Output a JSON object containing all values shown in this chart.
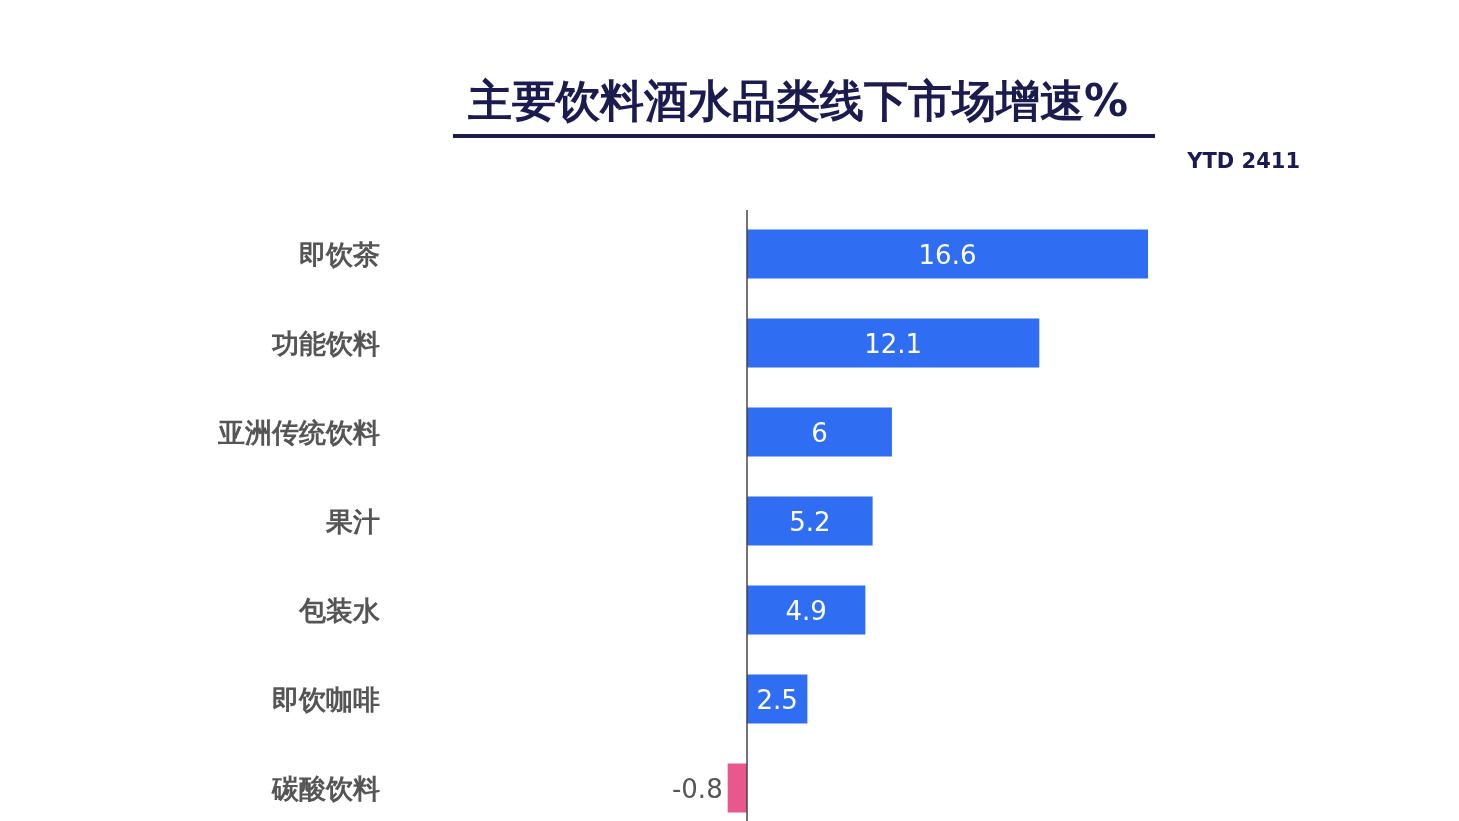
{
  "chart_data": {
    "type": "bar",
    "orientation": "horizontal",
    "title": "主要饮料酒水品类线下市场增速%",
    "subtitle": "YTD 2411",
    "categories": [
      "即饮茶",
      "功能饮料",
      "亚洲传统饮料",
      "果汁",
      "包装水",
      "即饮咖啡",
      "碳酸饮料"
    ],
    "values": [
      16.6,
      12.1,
      6,
      5.2,
      4.9,
      2.5,
      -0.8
    ],
    "colors": [
      "#2f6df2",
      "#2f6df2",
      "#2f6df2",
      "#2f6df2",
      "#2f6df2",
      "#2f6df2",
      "#e8588c"
    ],
    "data_labels": true
  }
}
